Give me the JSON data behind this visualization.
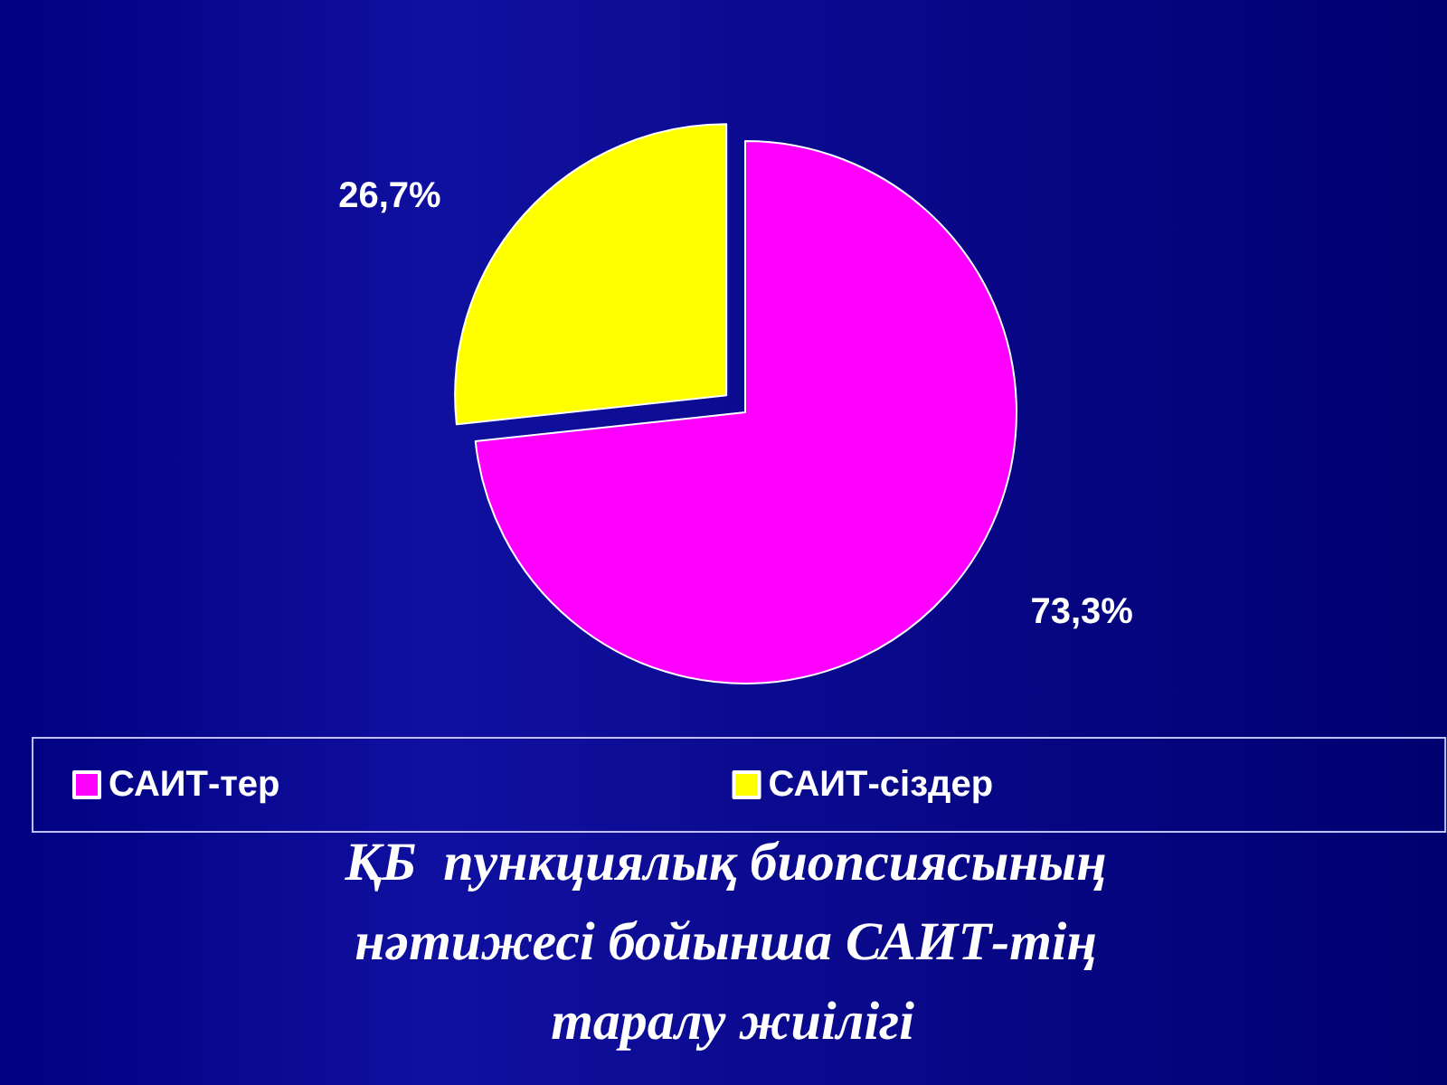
{
  "chart_data": {
    "type": "pie",
    "title": "ҚБ  пункциялық биопсиясының нәтижесі бойынша САИТ-тің таралу жиілігі",
    "categories": [
      "САИТ-тер",
      "САИТ-сіздер"
    ],
    "values": [
      73.3,
      26.7
    ],
    "colors": [
      "#ff00ff",
      "#ffff00"
    ],
    "value_labels": [
      "73,3%",
      "26,7%"
    ],
    "legend": "bottom"
  }
}
